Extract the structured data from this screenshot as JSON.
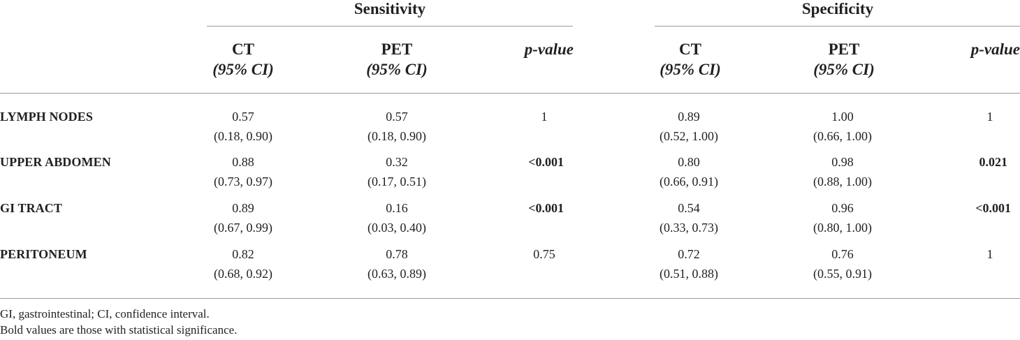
{
  "groups": {
    "sensitivity": "Sensitivity",
    "specificity": "Specificity"
  },
  "columns": {
    "ct": "CT",
    "pet": "PET",
    "ci": "(95% CI)",
    "pvalue": "p-value"
  },
  "rows": [
    {
      "label": "LYMPH NODES",
      "sens_ct": "0.57",
      "sens_ct_ci": "(0.18, 0.90)",
      "sens_pet": "0.57",
      "sens_pet_ci": "(0.18, 0.90)",
      "sens_p": "1",
      "spec_ct": "0.89",
      "spec_ct_ci": "(0.52, 1.00)",
      "spec_pet": "1.00",
      "spec_pet_ci": "(0.66, 1.00)",
      "spec_p": "1"
    },
    {
      "label": "UPPER ABDOMEN",
      "sens_ct": "0.88",
      "sens_ct_ci": "(0.73, 0.97)",
      "sens_pet": "0.32",
      "sens_pet_ci": "(0.17, 0.51)",
      "sens_p": "<0.001",
      "spec_ct": "0.80",
      "spec_ct_ci": "(0.66, 0.91)",
      "spec_pet": "0.98",
      "spec_pet_ci": "(0.88, 1.00)",
      "spec_p": "0.021"
    },
    {
      "label": "GI TRACT",
      "sens_ct": "0.89",
      "sens_ct_ci": "(0.67, 0.99)",
      "sens_pet": "0.16",
      "sens_pet_ci": "(0.03, 0.40)",
      "sens_p": "<0.001",
      "spec_ct": "0.54",
      "spec_ct_ci": "(0.33, 0.73)",
      "spec_pet": "0.96",
      "spec_pet_ci": "(0.80, 1.00)",
      "spec_p": "<0.001"
    },
    {
      "label": "PERITONEUM",
      "sens_ct": "0.82",
      "sens_ct_ci": "(0.68, 0.92)",
      "sens_pet": "0.78",
      "sens_pet_ci": "(0.63, 0.89)",
      "sens_p": "0.75",
      "spec_ct": "0.72",
      "spec_ct_ci": "(0.51, 0.88)",
      "spec_pet": "0.76",
      "spec_pet_ci": "(0.55, 0.91)",
      "spec_p": "1"
    }
  ],
  "footnotes": {
    "abbrev": "GI, gastrointestinal; CI, confidence interval.",
    "bold_note": "Bold values are those with statistical significance."
  }
}
